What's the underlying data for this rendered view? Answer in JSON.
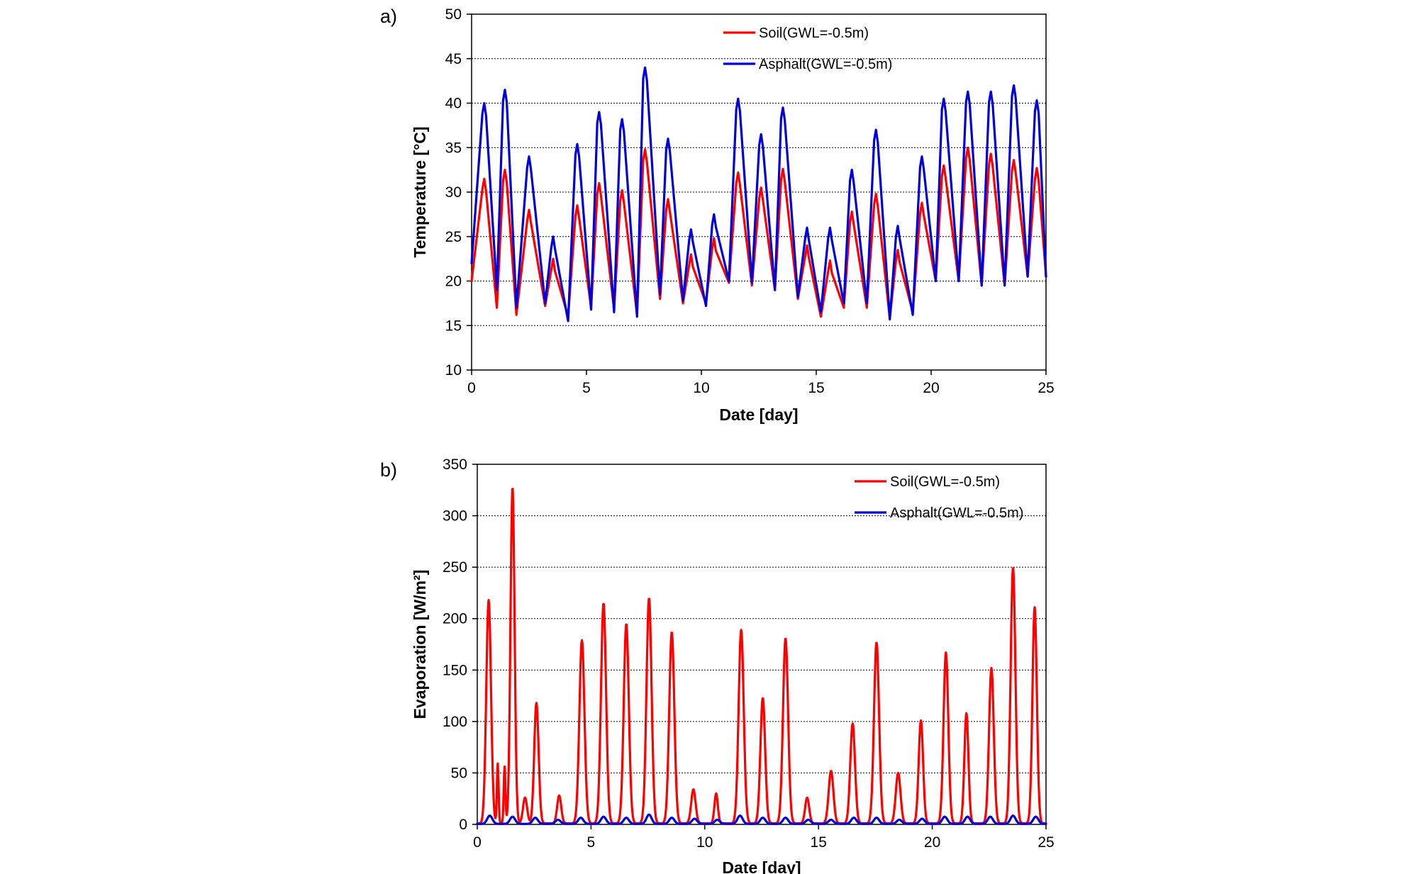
{
  "chart_data": [
    {
      "type": "line",
      "panel_label": "a)",
      "xlabel": "Date [day]",
      "ylabel": "Temperature [°C]",
      "xlim": [
        0,
        25
      ],
      "ylim": [
        10,
        50
      ],
      "x_ticks": [
        0,
        5,
        10,
        15,
        20,
        25
      ],
      "y_ticks": [
        10,
        15,
        20,
        25,
        30,
        35,
        40,
        45,
        50
      ],
      "grid": "horizontal-dotted",
      "legend_position": "top-right",
      "series": [
        {
          "name": "Soil(GWL=-0.5m)",
          "color": "#ff0000",
          "min_x": [
            0,
            1.1,
            1.95,
            3.2,
            4.2,
            5.2,
            6.2,
            7.2,
            8.2,
            9.2,
            10.2,
            11.2,
            12.2,
            13.2,
            14.2,
            15.2,
            16.2,
            17.2,
            18.2,
            19.2,
            20.2,
            21.2,
            22.2,
            23.2,
            24.2,
            25
          ],
          "min_y": [
            20,
            17,
            16.2,
            17.2,
            16,
            17,
            16.8,
            16.2,
            18,
            17.5,
            17.5,
            19.8,
            19.5,
            19,
            18,
            16,
            17,
            17,
            15.8,
            16.5,
            20,
            20,
            19.5,
            19.5,
            20.5,
            20.5
          ],
          "peak_x": [
            0.55,
            1.45,
            2.5,
            3.55,
            4.6,
            5.55,
            6.55,
            7.55,
            8.55,
            9.55,
            10.55,
            11.6,
            12.6,
            13.55,
            14.6,
            15.6,
            16.55,
            17.6,
            18.55,
            19.6,
            20.55,
            21.6,
            22.6,
            23.6,
            24.6
          ],
          "peak_y": [
            31.5,
            32.5,
            28,
            22.5,
            28.5,
            31,
            30.2,
            34.8,
            29.2,
            23,
            24.8,
            32.2,
            30.5,
            32.6,
            24,
            22.3,
            27.8,
            29.8,
            23.5,
            28.8,
            33,
            35,
            34.3,
            33.6,
            32.7
          ]
        },
        {
          "name": "Asphalt(GWL=-0.5m)",
          "color": "#0000dd",
          "min_x": [
            0,
            1.1,
            1.95,
            3.2,
            4.2,
            5.2,
            6.2,
            7.2,
            8.2,
            9.2,
            10.2,
            11.2,
            12.2,
            13.2,
            14.2,
            15.2,
            16.2,
            17.2,
            18.2,
            19.2,
            20.2,
            21.2,
            22.2,
            23.2,
            24.2,
            25
          ],
          "min_y": [
            22,
            19,
            17,
            17.5,
            15.5,
            16.8,
            16.5,
            16,
            18.5,
            17.8,
            17.2,
            20,
            19.8,
            19,
            18.2,
            16.5,
            17.5,
            17.5,
            15.7,
            16.2,
            20,
            20,
            19.5,
            19.5,
            20.5,
            20.5
          ],
          "peak_x": [
            0.55,
            1.45,
            2.5,
            3.55,
            4.6,
            5.55,
            6.55,
            7.55,
            8.55,
            9.55,
            10.55,
            11.6,
            12.6,
            13.55,
            14.6,
            15.6,
            16.55,
            17.6,
            18.55,
            19.6,
            20.55,
            21.6,
            22.6,
            23.6,
            24.6
          ],
          "peak_y": [
            40,
            41.5,
            34,
            25,
            35.4,
            39,
            38.2,
            44,
            36,
            25.8,
            27.5,
            40.5,
            36.5,
            39.5,
            26,
            26,
            32.5,
            37,
            26.2,
            34,
            40.5,
            41.3,
            41.3,
            42,
            40.3
          ]
        }
      ]
    },
    {
      "type": "line",
      "panel_label": "b)",
      "xlabel": "Date [day]",
      "ylabel": "Evaporation [W/m²]",
      "xlim": [
        0,
        25
      ],
      "ylim": [
        0,
        350
      ],
      "x_ticks": [
        0,
        5,
        10,
        15,
        20,
        25
      ],
      "y_ticks": [
        0,
        50,
        100,
        150,
        200,
        250,
        300,
        350
      ],
      "grid": "horizontal-dotted",
      "legend_position": "top-right",
      "series": [
        {
          "name": "Soil(GWL=-0.5m)",
          "color": "#ff0000",
          "baseline_y": 1,
          "peak_x": [
            0.5,
            0.9,
            1.2,
            1.55,
            2.1,
            2.6,
            3.6,
            4.6,
            5.55,
            6.55,
            7.55,
            8.55,
            9.5,
            10.5,
            11.6,
            12.55,
            13.55,
            14.5,
            15.55,
            16.5,
            17.55,
            18.5,
            19.5,
            20.6,
            21.5,
            22.6,
            23.55,
            24.5
          ],
          "peak_y": [
            217,
            58,
            55,
            327,
            25,
            117,
            27,
            178,
            214,
            194,
            219,
            186,
            33,
            29,
            188,
            122,
            180,
            25,
            51,
            97,
            176,
            49,
            100,
            166,
            107,
            151,
            249,
            210
          ],
          "peak_w": [
            0.14,
            0.05,
            0.05,
            0.12,
            0.12,
            0.13,
            0.12,
            0.15,
            0.15,
            0.15,
            0.15,
            0.15,
            0.13,
            0.1,
            0.15,
            0.14,
            0.15,
            0.12,
            0.14,
            0.14,
            0.15,
            0.14,
            0.13,
            0.14,
            0.12,
            0.14,
            0.14,
            0.13
          ]
        },
        {
          "name": "Asphalt(GWL=-0.5m)",
          "color": "#0000dd",
          "period": 1.0,
          "phase": 0.55,
          "amplitude": [
            8,
            7,
            6,
            4,
            6,
            7,
            6,
            9,
            6,
            5,
            4,
            8,
            6,
            6,
            4,
            4,
            6,
            6,
            4,
            5,
            7,
            7,
            7,
            8,
            7
          ],
          "baseline_y": 0.5
        }
      ]
    }
  ]
}
